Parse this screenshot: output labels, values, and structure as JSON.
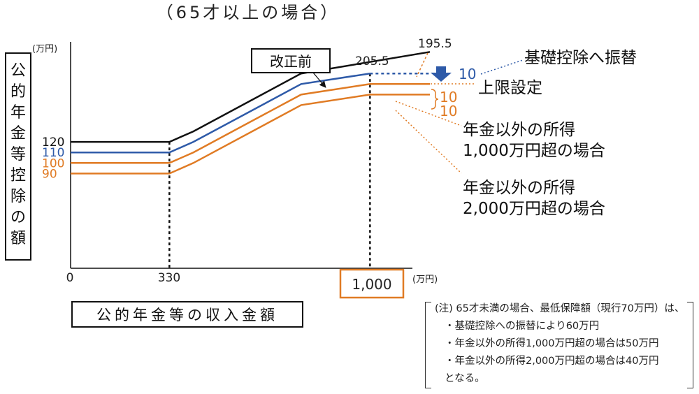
{
  "chart_data": {
    "type": "line",
    "title": "（65才以上の場合）",
    "ylabel": "公的年金等控除の額",
    "xlabel": "公的年金等の収入金額",
    "y_unit": "(万円)",
    "x_unit": "(万円)",
    "x_ticks": [
      "0",
      "330",
      "1,000"
    ],
    "xlim": [
      0,
      1200
    ],
    "ylim": [
      0,
      215
    ],
    "series": [
      {
        "name": "改正前",
        "color": "#111111",
        "x": [
          0,
          330,
          410,
          770,
          1200
        ],
        "y": [
          120,
          120,
          130,
          185,
          205.5
        ]
      },
      {
        "name": "",
        "color": "#2e5aa8",
        "x": [
          0,
          330,
          410,
          770,
          1000
        ],
        "y": [
          110,
          110,
          120,
          175,
          185
        ]
      },
      {
        "name": "",
        "color": "#e07b24",
        "x": [
          0,
          330,
          410,
          770,
          1000,
          1200
        ],
        "y": [
          100,
          100,
          110,
          165,
          175,
          175
        ]
      },
      {
        "name": "",
        "color": "#e07b24",
        "x": [
          0,
          330,
          410,
          770,
          1000,
          1200
        ],
        "y": [
          90,
          90,
          100,
          155,
          165,
          165
        ]
      }
    ],
    "upper_limit_segment": {
      "x": [
        1000,
        1200
      ],
      "y": [
        185,
        185
      ],
      "color": "#2e5aa8"
    },
    "y_value_labels": [
      {
        "text": "120",
        "color": "#111111",
        "y": 120
      },
      {
        "text": "110",
        "color": "#2e5aa8",
        "y": 110
      },
      {
        "text": "100",
        "color": "#e07b24",
        "y": 100
      },
      {
        "text": "90",
        "color": "#e07b24",
        "y": 90
      }
    ],
    "annotations": {
      "before_label": "改正前",
      "value_2055": "205.5",
      "value_1955": "195.5",
      "transfer_amount": "10",
      "transfer_label": "基礎控除へ振替",
      "limit_label": "上限設定",
      "diff_1": "10",
      "diff_2": "10",
      "income_1000_line1": "年金以外の所得",
      "income_1000_line2": "1,000万円超の場合",
      "income_2000_line1": "年金以外の所得",
      "income_2000_line2": "2,000万円超の場合"
    },
    "colors": {
      "black": "#111111",
      "blue": "#2e5aa8",
      "orange": "#e07b24"
    }
  },
  "note": {
    "line1": "(注) 65才未満の場合、最低保障額（現行70万円）は、",
    "line2": "・基礎控除への振替により60万円",
    "line3": "・年金以外の所得1,000万円超の場合は50万円",
    "line4": "・年金以外の所得2,000万円超の場合は40万円",
    "line5": "となる。"
  }
}
